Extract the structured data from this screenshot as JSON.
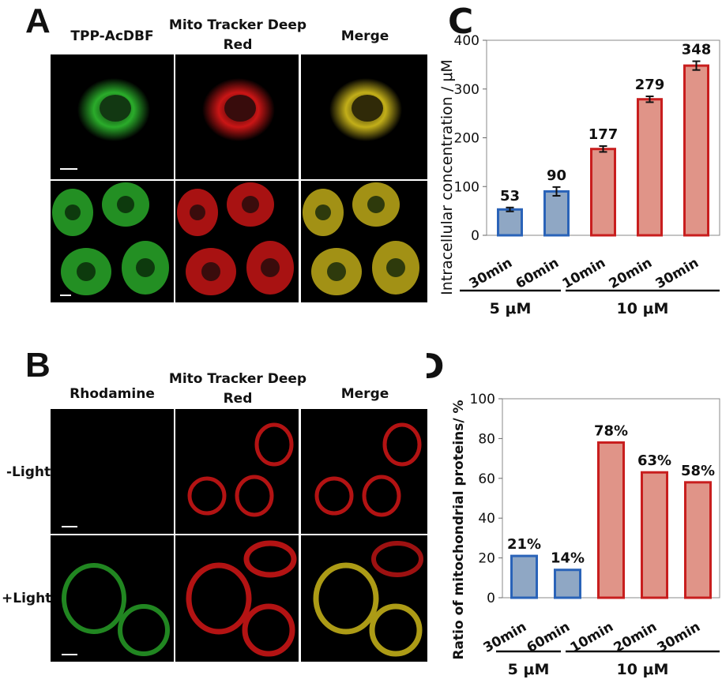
{
  "panels": {
    "A": {
      "label": "A",
      "columns": [
        "TPP-AcDBF",
        "Mito Tracker Deep Red",
        "Merge"
      ]
    },
    "B": {
      "label": "B",
      "columns": [
        "Rhodamine",
        "Mito Tracker Deep Red",
        "Merge"
      ],
      "rows": [
        "-Light",
        "+Light"
      ]
    }
  },
  "colors": {
    "green_channel": "#2fbf2f",
    "red_channel": "#e01818",
    "merge_channel": "#d8c21c",
    "blue_bar_fill": "#8fa7c4",
    "blue_bar_edge": "#2a63b8",
    "red_bar_fill": "#e09488",
    "red_bar_edge": "#c81e1e"
  },
  "chart_data": [
    {
      "panel_label": "C",
      "type": "bar",
      "categories": [
        "30min",
        "60min",
        "10min",
        "20min",
        "30min"
      ],
      "values": [
        53,
        90,
        177,
        279,
        348
      ],
      "value_labels": [
        "53",
        "90",
        "177",
        "279",
        "348"
      ],
      "errors": [
        4,
        9,
        6,
        6,
        9
      ],
      "groups": [
        {
          "label": "5 μM",
          "indices": [
            0,
            1
          ]
        },
        {
          "label": "10 μM",
          "indices": [
            2,
            3,
            4
          ]
        }
      ],
      "ylabel": "Intracellular concentration / μM",
      "ylim": [
        0,
        400
      ],
      "yticks": [
        0,
        100,
        200,
        300,
        400
      ]
    },
    {
      "panel_label": "D",
      "type": "bar",
      "categories": [
        "30min",
        "60min",
        "10min",
        "20min",
        "30min"
      ],
      "values": [
        21,
        14,
        78,
        63,
        58
      ],
      "value_labels": [
        "21%",
        "14%",
        "78%",
        "63%",
        "58%"
      ],
      "groups": [
        {
          "label": "5 μM",
          "indices": [
            0,
            1
          ]
        },
        {
          "label": "10 μM",
          "indices": [
            2,
            3,
            4
          ]
        }
      ],
      "ylabel": "Ratio of mitochondrial proteins/ %",
      "ylim": [
        0,
        100
      ],
      "yticks": [
        0,
        20,
        40,
        60,
        80,
        100
      ]
    }
  ]
}
